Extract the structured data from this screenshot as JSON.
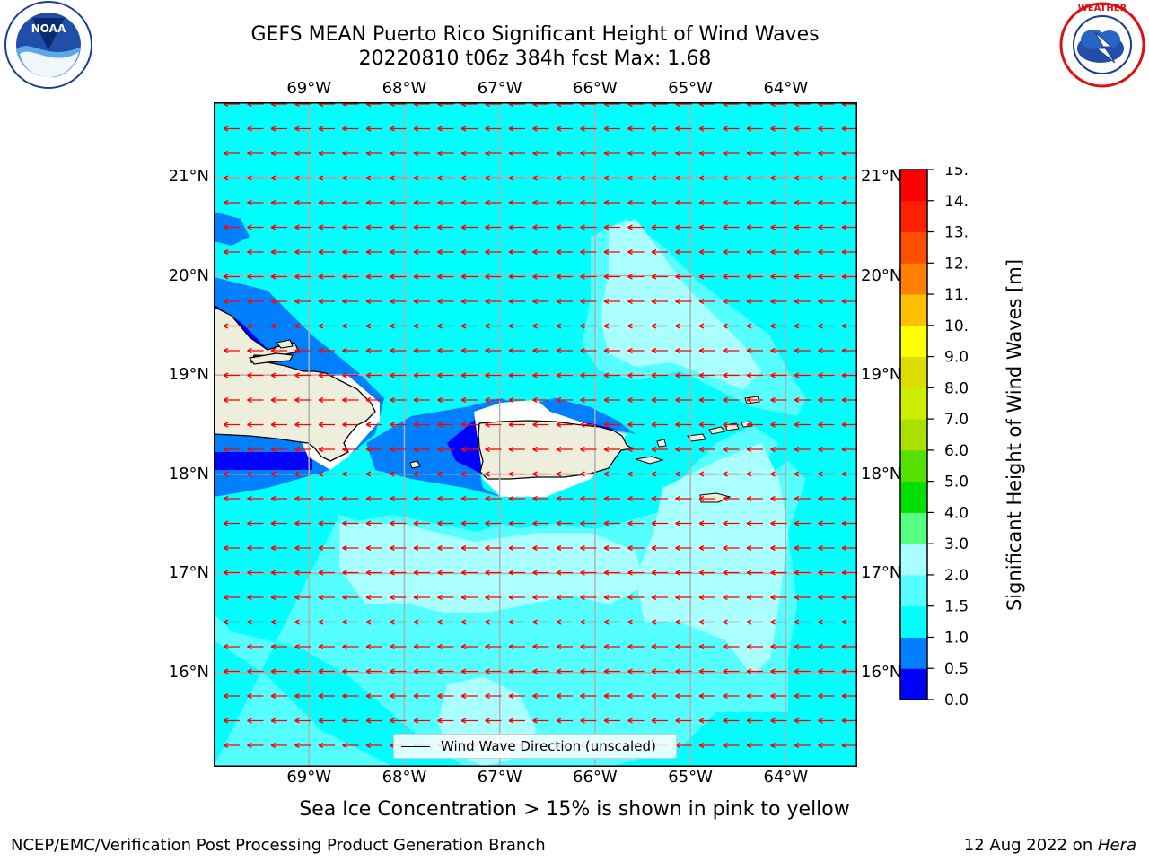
{
  "header": {
    "title_line1": "GEFS MEAN Puerto Rico Significant Height of Wind Waves",
    "title_line2": "20220810 t06z 384h fcst   Max: 1.68"
  },
  "logos": {
    "left": "noaa-logo",
    "right": "national-weather-service-logo"
  },
  "map": {
    "lon_labels": [
      "69°W",
      "68°W",
      "67°W",
      "66°W",
      "65°W",
      "64°W"
    ],
    "lat_labels": [
      "21°N",
      "20°N",
      "19°N",
      "18°N",
      "17°N",
      "16°N"
    ],
    "lon_values": [
      -69,
      -68,
      -67,
      -66,
      -65,
      -64
    ],
    "lat_values": [
      21,
      20,
      19,
      18,
      17,
      16
    ],
    "lon_range": [
      -70,
      -63.25
    ],
    "lat_range": [
      15.05,
      21.75
    ],
    "grid": true,
    "ocean_color": "#00ffff",
    "land_color": "#eeeedd",
    "arrow_color": "#ff0000",
    "arrow_direction": "east-to-west"
  },
  "legend": {
    "label": "Wind Wave Direction (unscaled)"
  },
  "colorbar": {
    "label": "Significant Height of Wind Waves [m]",
    "ticks": [
      "0.0",
      "0.5",
      "1.0",
      "1.5",
      "2.0",
      "3.0",
      "4.0",
      "5.0",
      "6.0",
      "7.0",
      "8.0",
      "9.0",
      "10.0",
      "11.0",
      "12.0",
      "13.0",
      "14.0",
      "15.0"
    ],
    "colors": [
      "#0000ff",
      "#0080ff",
      "#00ffff",
      "#55ffff",
      "#aaffff",
      "#55ff80",
      "#00e000",
      "#55e000",
      "#aae000",
      "#ccee00",
      "#dddd00",
      "#ffff00",
      "#ffc000",
      "#ff8000",
      "#ff5000",
      "#ff2000",
      "#ff0000"
    ]
  },
  "footer": {
    "sea_ice_note": "Sea Ice Concentration > 15% is shown in pink to yellow",
    "left": "NCEP/EMC/Verification Post Processing Product Generation Branch",
    "date": "12 Aug 2022 on ",
    "host": "Hera"
  }
}
